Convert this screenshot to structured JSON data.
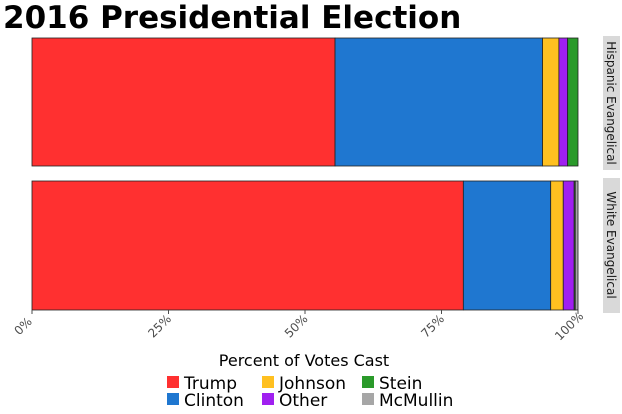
{
  "chart_data": {
    "type": "bar",
    "orientation": "horizontal",
    "stacked": true,
    "title": "2016 Presidential Election",
    "xlabel": "Percent of Votes Cast",
    "ylabel": "",
    "xlim": [
      0,
      100
    ],
    "x_ticks": [
      "0%",
      "25%",
      "50%",
      "75%",
      "100%"
    ],
    "tick_values": [
      0,
      25,
      50,
      75,
      100
    ],
    "facets": [
      "Hispanic Evangelical",
      "White Evangelical"
    ],
    "series": [
      {
        "name": "Trump",
        "color": "#ff3030",
        "values": [
          55.5,
          79.0
        ]
      },
      {
        "name": "Clinton",
        "color": "#1f77d0",
        "values": [
          38.0,
          16.0
        ]
      },
      {
        "name": "Johnson",
        "color": "#ffc020",
        "values": [
          3.0,
          2.3
        ]
      },
      {
        "name": "Other",
        "color": "#a020f0",
        "values": [
          1.6,
          2.0
        ]
      },
      {
        "name": "Stein",
        "color": "#2a9a2a",
        "values": [
          1.9,
          0.2
        ]
      },
      {
        "name": "McMullin",
        "color": "#a6a6a6",
        "values": [
          0.0,
          0.5
        ]
      }
    ],
    "legend": {
      "position": "bottom",
      "order": [
        "Trump",
        "Clinton",
        "Johnson",
        "Other",
        "Stein",
        "McMullin"
      ]
    },
    "grid": true
  }
}
